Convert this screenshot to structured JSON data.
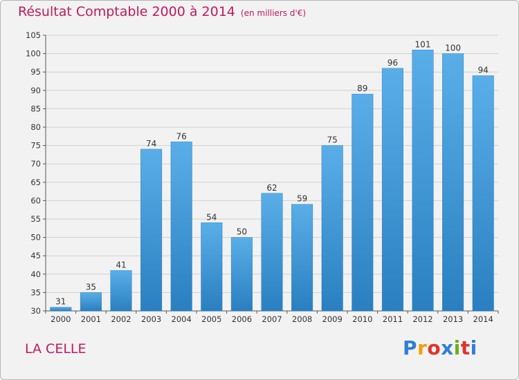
{
  "title": "Résultat Comptable 2000 à 2014",
  "title_unit": "(en milliers d'€)",
  "commune": "LA CELLE",
  "logo": {
    "text": "Proxiti",
    "letter_colors": [
      "#2e7fd6",
      "#f2a007",
      "#e2322b",
      "#2e7fd6",
      "#6ab023",
      "#e2322b",
      "#2e7fd6"
    ]
  },
  "colors": {
    "title": "#c2185b",
    "bar_light": "#5aaee8",
    "bar_dark": "#2a7fc0",
    "grid": "#d0d0d0"
  },
  "chart_data": {
    "type": "bar",
    "categories": [
      "2000",
      "2001",
      "2002",
      "2003",
      "2004",
      "2005",
      "2006",
      "2007",
      "2008",
      "2009",
      "2010",
      "2011",
      "2012",
      "2013",
      "2014"
    ],
    "values": [
      31,
      35,
      41,
      74,
      76,
      54,
      50,
      62,
      59,
      75,
      89,
      96,
      101,
      100,
      94
    ],
    "ylim": [
      30,
      105
    ],
    "yticks": [
      30,
      35,
      40,
      45,
      50,
      55,
      60,
      65,
      70,
      75,
      80,
      85,
      90,
      95,
      100,
      105
    ],
    "grid": true,
    "xlabel": "",
    "ylabel": ""
  }
}
